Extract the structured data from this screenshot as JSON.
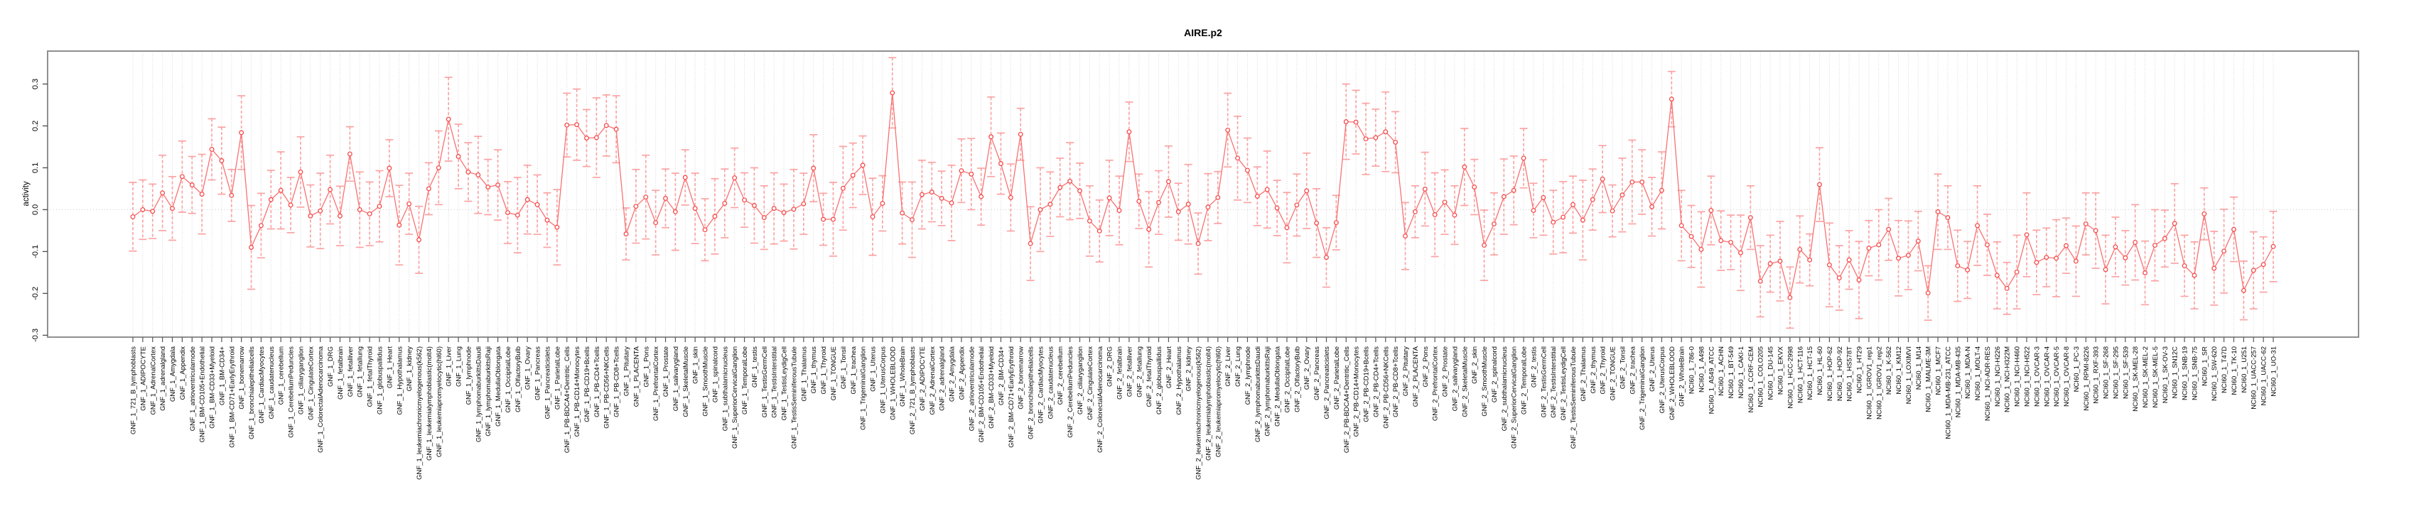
{
  "chart_data": {
    "type": "line",
    "title": "AIRE.p2",
    "ylabel": "activity",
    "xlabel": "",
    "grid": "dotted-vertical-per-category-plus-zero-line",
    "legend": "none",
    "ylim": [
      -0.304,
      0.379
    ],
    "ytick_labels": [
      "0.3",
      "0.2",
      "0.1",
      "0.0",
      "-0.1",
      "-0.2",
      "-0.3"
    ],
    "ytick_values": [
      0.3,
      0.2,
      0.1,
      0.0,
      -0.1,
      -0.2,
      -0.3
    ],
    "colors": {
      "point": "#f64c4c",
      "line": "#f87171",
      "errorbar": "#fba3a3",
      "grid": "#d8d8d8",
      "zero_line": "#cccccc",
      "border": "#8f8f8f",
      "tick": "#555555",
      "text": "#000000"
    },
    "categories": [
      "GNF_1_721_B_lymphoblasts",
      "GNF_1_ADIPOCYTE",
      "GNF_1_AdrenalCortex",
      "GNF_1_adrenalgland",
      "GNF_1_Amygdala",
      "GNF_1_Appendix",
      "GNF_1_atrioventricularnode",
      "GNF_1_BM-CD105+Endothelial",
      "GNF_1_BM-CD33+Myeloid",
      "GNF_1_BM-CD34+",
      "GNF_1_BM-CD71+EarlyErythroid",
      "GNF_1_bonemarrow",
      "GNF_1_bronchialepithelialcells",
      "GNF_1_CardiacMyocytes",
      "GNF_1_caudatenucleus",
      "GNF_1_cerebellum",
      "GNF_1_CerebellumPeduncles",
      "GNF_1_ciliaryganglion",
      "GNF_1_CingulateCortex",
      "GNF_1_ColorectalAdenocarcinoma",
      "GNF_1_DRG",
      "GNF_1_fetalbrain",
      "GNF_1_fetalliver",
      "GNF_1_fetallung",
      "GNF_1_fetalThyroid",
      "GNF_1_globuspallidus",
      "GNF_1_Heart",
      "GNF_1_Hypothalamus",
      "GNF_1_kidney",
      "GNF_1_leukemiachronicmyelogenous(k562)",
      "GNF_1_leukemialymphoblastic(molt4)",
      "GNF_1_leukemiapromyelocytic(hl60)",
      "GNF_1_Liver",
      "GNF_1_Lung",
      "GNF_1_lymphnode",
      "GNF_1_lymphomaburkittsDaudi",
      "GNF_1_lymphomaburkittsRaji",
      "GNF_1_MedullaOblongata",
      "GNF_1_OccipitalLobe",
      "GNF_1_OlfactoryBulb",
      "GNF_1_Ovary",
      "GNF_1_Pancreas",
      "GNF_1_Pancreaticislets",
      "GNF_1_ParietalLobe",
      "GNF_1_PB-BDCA4+Dentritic_Cells",
      "GNF_1_PB-CD14+Monocytes",
      "GNF_1_PB-CD19+Bcells",
      "GNF_1_PB-CD4+Tcells",
      "GNF_1_PB-CD56+NKCells",
      "GNF_1_PB-CD8+Tcells",
      "GNF_1_Pituitary",
      "GNF_1_PLACENTA",
      "GNF_1_Pons",
      "GNF_1_PrefrontalCortex",
      "GNF_1_Prostate",
      "GNF_1_salivarygland",
      "GNF_1_SkeletalMuscle",
      "GNF_1_skin",
      "GNF_1_SmoothMuscle",
      "GNF_1_spinalcord",
      "GNF_1_subthalamicnucleus",
      "GNF_1_SuperiorCervicalGanglion",
      "GNF_1_TemporalLobe",
      "GNF_1_testis",
      "GNF_1_TestisGermCell",
      "GNF_1_TestisInterstitial",
      "GNF_1_TestisLeydigCell",
      "GNF_1_TestisSeminiferousTubule",
      "GNF_1_Thalamus",
      "GNF_1_thymus",
      "GNF_1_Thyroid",
      "GNF_1_TONGUE",
      "GNF_1_Tonsil",
      "GNF_1_trachea",
      "GNF_1_TrigeminalGanglion",
      "GNF_1_Uterus",
      "GNF_1_UterusCorpus",
      "GNF_1_WHOLEBLOOD",
      "GNF_1_WholeBrain",
      "GNF_2_721_B_lymphoblasts",
      "GNF_2_ADIPOCYTE",
      "GNF_2_AdrenalCortex",
      "GNF_2_adrenalgland",
      "GNF_2_Amygdala",
      "GNF_2_Appendix",
      "GNF_2_atrioventricularnode",
      "GNF_2_BM-CD105+Endothelial",
      "GNF_2_BM-CD33+Myeloid",
      "GNF_2_BM-CD34+",
      "GNF_2_BM-CD71+EarlyErythroid",
      "GNF_2_bonemarrow",
      "GNF_2_bronchialepithelialcells",
      "GNF_2_CardiacMyocytes",
      "GNF_2_caudatenucleus",
      "GNF_2_cerebellum",
      "GNF_2_CerebellumPeduncles",
      "GNF_2_ciliaryganglion",
      "GNF_2_CingulateCortex",
      "GNF_2_ColorectalAdenocarcinoma",
      "GNF_2_DRG",
      "GNF_2_fetalbrain",
      "GNF_2_fetalliver",
      "GNF_2_fetallung",
      "GNF_2_fetalThyroid",
      "GNF_2_globuspallidus",
      "GNF_2_Heart",
      "GNF_2_Hypothalamus",
      "GNF_2_kidney",
      "GNF_2_leukemiachronicmyelogenous(k562)",
      "GNF_2_leukemialymphoblastic(molt4)",
      "GNF_2_leukemiapromyelocytic(hl60)",
      "GNF_2_Liver",
      "GNF_2_Lung",
      "GNF_2_lymphnode",
      "GNF_2_lymphomaburkittsDaudi",
      "GNF_2_lymphomaburkittsRaji",
      "GNF_2_MedullaOblongata",
      "GNF_2_OccipitalLobe",
      "GNF_2_OlfactoryBulb",
      "GNF_2_Ovary",
      "GNF_2_Pancreas",
      "GNF_2_Pancreaticislets",
      "GNF_2_ParietalLobe",
      "GNF_2_PB-BDCA4+Dentritic_Cells",
      "GNF_2_PB-CD14+Monocytes",
      "GNF_2_PB-CD19+Bcells",
      "GNF_2_PB-CD4+Tcells",
      "GNF_2_PB-CD56+NKCells",
      "GNF_2_PB-CD8+Tcells",
      "GNF_2_Pituitary",
      "GNF_2_PLACENTA",
      "GNF_2_Pons",
      "GNF_2_PrefrontalCortex",
      "GNF_2_Prostate",
      "GNF_2_salivarygland",
      "GNF_2_SkeletalMuscle",
      "GNF_2_skin",
      "GNF_2_SmoothMuscle",
      "GNF_2_spinalcord",
      "GNF_2_subthalamicnucleus",
      "GNF_2_SuperiorCervicalGanglion",
      "GNF_2_TemporalLobe",
      "GNF_2_testis",
      "GNF_2_TestisGermCell",
      "GNF_2_TestisInterstitial",
      "GNF_2_TestisLeydigCell",
      "GNF_2_TestisSeminiferousTubule",
      "GNF_2_Thalamus",
      "GNF_2_thymus",
      "GNF_2_Thyroid",
      "GNF_2_TONGUE",
      "GNF_2_Tonsil",
      "GNF_2_trachea",
      "GNF_2_TrigeminalGanglion",
      "GNF_2_Uterus",
      "GNF_2_UterusCorpus",
      "GNF_2_WHOLEBLOOD",
      "GNF_2_WholeBrain",
      "NCI60_1_786-0",
      "NCI60_1_A498",
      "NCI60_1_A549_ATCC",
      "NCI60_1_ACHN",
      "NCI60_1_BT-549",
      "NCI60_1_CAKI-1",
      "NCI60_1_CCRF-CEM",
      "NCI60_1_COLO205",
      "NCI60_1_DU-145",
      "NCI60_1_EKVX",
      "NCI60_1_HCC-2998",
      "NCI60_1_HCT-116",
      "NCI60_1_HCT-15",
      "NCI60_1_HL-60",
      "NCI60_1_HOP-62",
      "NCI60_1_HOP-92",
      "NCI60_1_HS578T",
      "NCI60_1_HT29",
      "NCI60_1_IGROV1_rep1",
      "NCI60_1_IGROV1_rep2",
      "NCI60_1_K-562",
      "NCI60_1_KM12",
      "NCI60_1_LOXIMVI",
      "NCI60_1_M14",
      "NCI60_1_MALME-3M",
      "NCI60_1_MCF7",
      "NCI60_1_MDA-MB-231_ATCC",
      "NCI60_1_MDA-MB-435",
      "NCI60_1_MDA-N",
      "NCI60_1_MOLT-4",
      "NCI60_1_NCI-ADR-RES",
      "NCI60_1_NCI-H226",
      "NCI60_1_NCI-H322M",
      "NCI60_1_NCI-H460",
      "NCI60_1_NCI-H522",
      "NCI60_1_OVCAR-3",
      "NCI60_1_OVCAR-4",
      "NCI60_1_OVCAR-5",
      "NCI60_1_OVCAR-8",
      "NCI60_1_PC-3",
      "NCI60_1_RPMI-8226",
      "NCI60_1_RXF-393",
      "NCI60_1_SF-268",
      "NCI60_1_SF-295",
      "NCI60_1_SF-539",
      "NCI60_1_SK-MEL-28",
      "NCI60_1_SK-MEL-2",
      "NCI60_1_SK-MEL-5",
      "NCI60_1_SK-OV-3",
      "NCI60_1_SN12C",
      "NCI60_1_SNB-19",
      "NCI60_1_SNB-75",
      "NCI60_1_SR",
      "NCI60_1_SW-620",
      "NCI60_1_T47D",
      "NCI60_1_TK-10",
      "NCI60_1_U251",
      "NCI60_1_UACC-257",
      "NCI60_1_UACC-62",
      "NCI60_1_UO-31"
    ],
    "values": [
      -0.017,
      0.0,
      -0.004,
      0.04,
      0.003,
      0.079,
      0.059,
      0.037,
      0.144,
      0.117,
      0.034,
      0.184,
      -0.09,
      -0.038,
      0.024,
      0.046,
      0.011,
      0.09,
      -0.015,
      -0.003,
      0.048,
      -0.015,
      0.133,
      0.0,
      -0.01,
      0.008,
      0.099,
      -0.037,
      0.014,
      -0.072,
      0.05,
      0.1,
      0.216,
      0.127,
      0.09,
      0.083,
      0.054,
      0.059,
      -0.007,
      -0.013,
      0.024,
      0.012,
      -0.025,
      -0.042,
      0.202,
      0.203,
      0.171,
      0.172,
      0.201,
      0.192,
      -0.058,
      0.008,
      0.03,
      -0.031,
      0.027,
      -0.005,
      0.077,
      0.003,
      -0.048,
      -0.016,
      0.015,
      0.076,
      0.023,
      0.01,
      -0.019,
      0.003,
      -0.007,
      0.001,
      0.014,
      0.099,
      -0.023,
      -0.023,
      0.051,
      0.082,
      0.106,
      -0.017,
      0.015,
      0.279,
      -0.008,
      -0.024,
      0.036,
      0.042,
      0.027,
      0.016,
      0.093,
      0.085,
      0.031,
      0.174,
      0.11,
      0.029,
      0.18,
      -0.081,
      0.0,
      0.013,
      0.053,
      0.068,
      0.045,
      -0.027,
      -0.051,
      0.028,
      -0.002,
      0.186,
      0.02,
      -0.047,
      0.017,
      0.067,
      -0.005,
      0.013,
      -0.081,
      0.006,
      0.029,
      0.19,
      0.123,
      0.094,
      0.032,
      0.048,
      0.004,
      -0.043,
      0.011,
      0.045,
      -0.032,
      -0.114,
      -0.031,
      0.21,
      0.209,
      0.169,
      0.172,
      0.186,
      0.161,
      -0.063,
      -0.005,
      0.049,
      -0.012,
      0.018,
      -0.013,
      0.102,
      0.054,
      -0.085,
      -0.034,
      0.031,
      0.046,
      0.123,
      -0.002,
      0.029,
      -0.03,
      -0.018,
      0.012,
      -0.025,
      0.024,
      0.073,
      -0.003,
      0.035,
      0.066,
      0.066,
      0.007,
      0.046,
      0.264,
      -0.038,
      -0.064,
      -0.095,
      -0.002,
      -0.074,
      -0.078,
      -0.103,
      -0.019,
      -0.171,
      -0.129,
      -0.123,
      -0.21,
      -0.095,
      -0.12,
      0.06,
      -0.132,
      -0.163,
      -0.12,
      -0.168,
      -0.092,
      -0.084,
      -0.047,
      -0.116,
      -0.109,
      -0.075,
      -0.199,
      -0.005,
      -0.019,
      -0.134,
      -0.144,
      -0.038,
      -0.084,
      -0.157,
      -0.188,
      -0.149,
      -0.06,
      -0.126,
      -0.114,
      -0.116,
      -0.086,
      -0.123,
      -0.034,
      -0.05,
      -0.143,
      -0.089,
      -0.115,
      -0.078,
      -0.151,
      -0.085,
      -0.069,
      -0.033,
      -0.134,
      -0.157,
      -0.01,
      -0.14,
      -0.099,
      -0.047,
      -0.193,
      -0.145,
      -0.131,
      -0.088
    ],
    "stderr": [
      0.082,
      0.071,
      0.065,
      0.09,
      0.076,
      0.085,
      0.068,
      0.095,
      0.073,
      0.08,
      0.062,
      0.088,
      0.1,
      0.077,
      0.07,
      0.092,
      0.066,
      0.084,
      0.074,
      0.09,
      0.082,
      0.071,
      0.065,
      0.09,
      0.076,
      0.085,
      0.068,
      0.095,
      0.073,
      0.08,
      0.062,
      0.088,
      0.1,
      0.077,
      0.07,
      0.092,
      0.066,
      0.084,
      0.074,
      0.09,
      0.082,
      0.071,
      0.065,
      0.09,
      0.076,
      0.085,
      0.068,
      0.095,
      0.073,
      0.08,
      0.062,
      0.088,
      0.1,
      0.077,
      0.07,
      0.092,
      0.066,
      0.084,
      0.074,
      0.09,
      0.082,
      0.071,
      0.065,
      0.09,
      0.076,
      0.085,
      0.068,
      0.095,
      0.073,
      0.08,
      0.062,
      0.088,
      0.1,
      0.077,
      0.07,
      0.092,
      0.066,
      0.084,
      0.074,
      0.09,
      0.082,
      0.071,
      0.065,
      0.09,
      0.076,
      0.085,
      0.068,
      0.095,
      0.073,
      0.08,
      0.062,
      0.088,
      0.1,
      0.077,
      0.07,
      0.092,
      0.066,
      0.084,
      0.074,
      0.09,
      0.082,
      0.071,
      0.065,
      0.09,
      0.076,
      0.085,
      0.068,
      0.095,
      0.073,
      0.08,
      0.062,
      0.088,
      0.1,
      0.077,
      0.07,
      0.092,
      0.066,
      0.084,
      0.074,
      0.09,
      0.082,
      0.071,
      0.065,
      0.09,
      0.076,
      0.085,
      0.068,
      0.095,
      0.073,
      0.08,
      0.062,
      0.088,
      0.1,
      0.077,
      0.07,
      0.092,
      0.066,
      0.084,
      0.074,
      0.09,
      0.082,
      0.071,
      0.065,
      0.09,
      0.076,
      0.085,
      0.068,
      0.095,
      0.073,
      0.08,
      0.062,
      0.088,
      0.1,
      0.077,
      0.07,
      0.092,
      0.066,
      0.084,
      0.074,
      0.09,
      0.082,
      0.071,
      0.065,
      0.09,
      0.076,
      0.085,
      0.068,
      0.095,
      0.073,
      0.08,
      0.062,
      0.088,
      0.1,
      0.077,
      0.07,
      0.092,
      0.066,
      0.084,
      0.074,
      0.09,
      0.082,
      0.071,
      0.065,
      0.09,
      0.076,
      0.085,
      0.068,
      0.095,
      0.073,
      0.08,
      0.062,
      0.088,
      0.1,
      0.077,
      0.07,
      0.092,
      0.066,
      0.084,
      0.074,
      0.09,
      0.082,
      0.071,
      0.065,
      0.09,
      0.076,
      0.085,
      0.068,
      0.095,
      0.073,
      0.08,
      0.062,
      0.088,
      0.1,
      0.077,
      0.07,
      0.092,
      0.066,
      0.084
    ]
  }
}
